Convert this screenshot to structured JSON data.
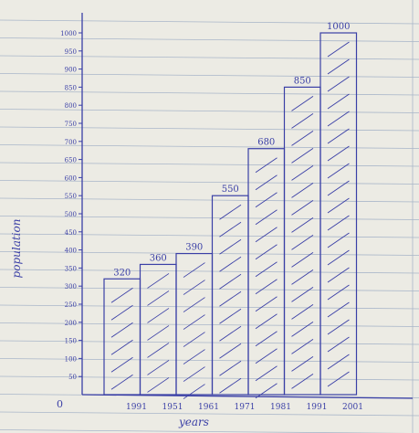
{
  "chart_data": {
    "type": "bar",
    "title": "",
    "xlabel": "years",
    "ylabel": "population",
    "origin_label": "0",
    "categories": [
      "1991",
      "1951",
      "1961",
      "1971",
      "1981",
      "1991",
      "2001"
    ],
    "values": [
      320,
      360,
      390,
      550,
      680,
      850,
      1000
    ],
    "value_labels": [
      "320",
      "360",
      "390",
      "550",
      "680",
      "850",
      "1000"
    ],
    "y_ticks": [
      "50",
      "100",
      "150",
      "200",
      "250",
      "300",
      "350",
      "400",
      "450",
      "500",
      "550",
      "600",
      "650",
      "700",
      "750",
      "800",
      "850",
      "900",
      "950",
      "1000"
    ],
    "ylim": [
      0,
      1000
    ],
    "bar_fill": "hatched",
    "grid": "ruled notebook lines",
    "colors": {
      "ink": "#3a3fa6",
      "paper": "#ecebe4",
      "rule": "#a9b6c9"
    }
  }
}
